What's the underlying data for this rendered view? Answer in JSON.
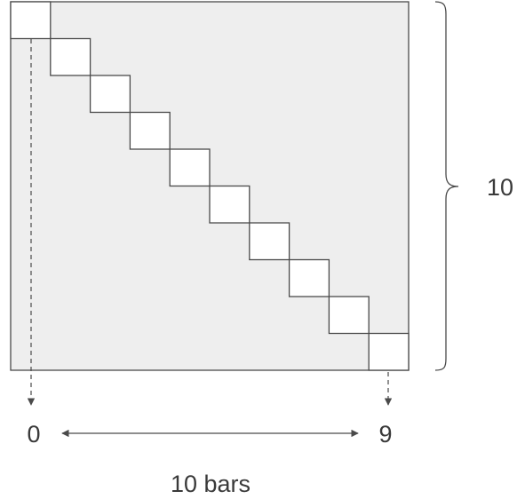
{
  "diagram": {
    "bar_count": 10,
    "first_index_label": "0",
    "last_index_label": "9",
    "height_label": "10",
    "span_label": "10 bars"
  },
  "colors": {
    "background_panel": "#eeeeee",
    "cell_fill": "#ffffff",
    "stroke": "#4a4a4a",
    "text": "#3a3a3a"
  }
}
